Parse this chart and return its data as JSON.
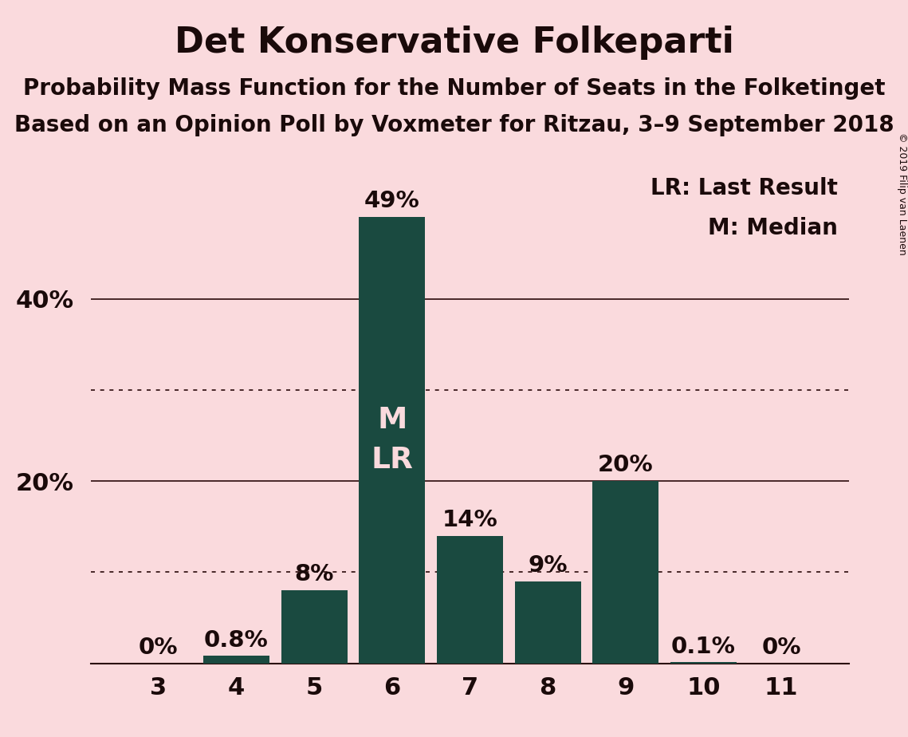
{
  "title": "Det Konservative Folkeparti",
  "subtitle1": "Probability Mass Function for the Number of Seats in the Folketinget",
  "subtitle2": "Based on an Opinion Poll by Voxmeter for Ritzau, 3–9 September 2018",
  "copyright": "© 2019 Filip van Laenen",
  "background_color": "#fadadd",
  "bar_color": "#1a4a40",
  "categories": [
    3,
    4,
    5,
    6,
    7,
    8,
    9,
    10,
    11
  ],
  "values": [
    0.0,
    0.8,
    8.0,
    49.0,
    14.0,
    9.0,
    20.0,
    0.1,
    0.0
  ],
  "labels": [
    "0%",
    "0.8%",
    "8%",
    "49%",
    "14%",
    "9%",
    "20%",
    "0.1%",
    "0%"
  ],
  "median_bar_idx": 3,
  "legend_line1": "LR: Last Result",
  "legend_line2": "M: Median",
  "bar_text_color": "#fadadd",
  "label_color": "#1a0a0a",
  "solid_gridlines": [
    20,
    40
  ],
  "dotted_gridlines": [
    10,
    30
  ],
  "ylim": [
    0,
    55
  ],
  "title_fontsize": 32,
  "subtitle_fontsize": 20,
  "bar_label_fontsize": 21,
  "tick_fontsize": 22,
  "legend_fontsize": 20,
  "copyright_fontsize": 9
}
